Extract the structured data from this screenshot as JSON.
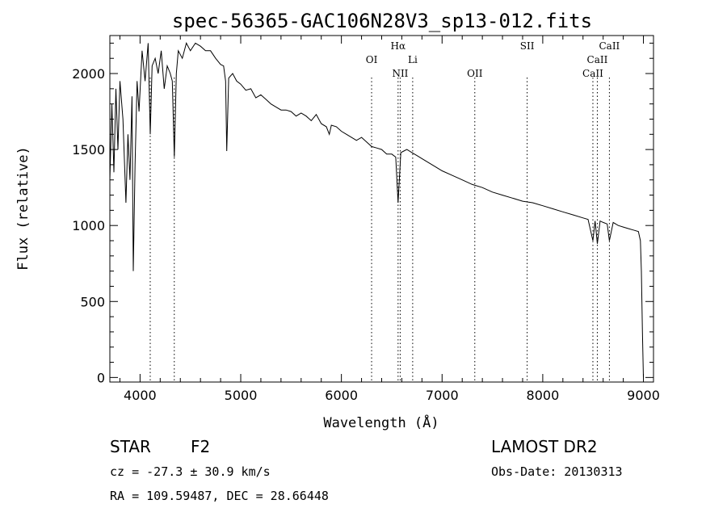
{
  "chart_data": {
    "type": "line",
    "title": "spec-56365-GAC106N28V3_sp13-012.fits",
    "xlabel": "Wavelength (Å)",
    "ylabel": "Flux (relative)",
    "xlim": [
      3700,
      9100
    ],
    "ylim": [
      -30,
      2250
    ],
    "xticks": [
      4000,
      5000,
      6000,
      7000,
      8000,
      9000
    ],
    "yticks": [
      0,
      500,
      1000,
      1500,
      2000
    ],
    "series": [
      {
        "x": [
          3700,
          3720,
          3740,
          3760,
          3780,
          3800,
          3830,
          3860,
          3880,
          3900,
          3920,
          3933,
          3950,
          3970,
          3990,
          4020,
          4050,
          4080,
          4101,
          4120,
          4150,
          4180,
          4210,
          4240,
          4270,
          4300,
          4320,
          4340,
          4360,
          4380,
          4420,
          4460,
          4500,
          4550,
          4600,
          4650,
          4700,
          4750,
          4800,
          4830,
          4850,
          4861,
          4880,
          4920,
          4960,
          5000,
          5050,
          5100,
          5150,
          5200,
          5250,
          5300,
          5350,
          5400,
          5450,
          5500,
          5550,
          5600,
          5650,
          5700,
          5750,
          5800,
          5850,
          5880,
          5900,
          5950,
          6000,
          6050,
          6100,
          6150,
          6200,
          6250,
          6300,
          6350,
          6400,
          6450,
          6500,
          6540,
          6563,
          6590,
          6620,
          6650,
          6700,
          6750,
          6800,
          6850,
          6900,
          6950,
          7000,
          7100,
          7200,
          7300,
          7400,
          7500,
          7600,
          7700,
          7800,
          7900,
          8000,
          8100,
          8200,
          8300,
          8400,
          8450,
          8498,
          8520,
          8542,
          8570,
          8600,
          8640,
          8662,
          8700,
          8750,
          8800,
          8850,
          8900,
          8950,
          8970,
          8980,
          8990,
          9000
        ],
        "y": [
          1300,
          1800,
          1350,
          1900,
          1500,
          1950,
          1700,
          1150,
          1600,
          1300,
          1850,
          700,
          1400,
          1950,
          1750,
          2150,
          1950,
          2200,
          1600,
          2050,
          2100,
          2000,
          2150,
          1900,
          2050,
          2000,
          1950,
          1450,
          2000,
          2150,
          2100,
          2200,
          2150,
          2200,
          2180,
          2150,
          2150,
          2100,
          2060,
          2050,
          1950,
          1490,
          1970,
          2000,
          1950,
          1930,
          1890,
          1900,
          1840,
          1860,
          1830,
          1800,
          1780,
          1760,
          1760,
          1750,
          1720,
          1740,
          1720,
          1690,
          1730,
          1670,
          1650,
          1600,
          1660,
          1650,
          1620,
          1600,
          1580,
          1560,
          1580,
          1550,
          1520,
          1510,
          1500,
          1470,
          1470,
          1450,
          1150,
          1480,
          1490,
          1500,
          1480,
          1460,
          1440,
          1420,
          1400,
          1380,
          1360,
          1330,
          1300,
          1270,
          1250,
          1220,
          1200,
          1180,
          1160,
          1150,
          1130,
          1110,
          1090,
          1070,
          1050,
          1040,
          900,
          1030,
          880,
          1030,
          1020,
          1010,
          900,
          1020,
          1000,
          990,
          980,
          970,
          960,
          900,
          700,
          300,
          0
        ]
      }
    ],
    "lines": [
      {
        "label": "OI",
        "x": 6300,
        "row": 2
      },
      {
        "label": "Hα",
        "x": 6563,
        "row": 1
      },
      {
        "label": "NII",
        "x": 6584,
        "row": 3
      },
      {
        "label": "Li",
        "x": 6708,
        "row": 2
      },
      {
        "label": "OII",
        "x": 7325,
        "row": 3
      },
      {
        "label": "SII",
        "x": 7845,
        "row": 1
      },
      {
        "label": "CaII",
        "x": 8498,
        "row": 3
      },
      {
        "label": "CaII",
        "x": 8542,
        "row": 2
      },
      {
        "label": "CaII",
        "x": 8662,
        "row": 1
      }
    ],
    "line_markers_x": [
      4101,
      4340,
      6300,
      6563,
      6584,
      6708,
      7325,
      7845,
      8498,
      8542,
      8662
    ],
    "grid": false,
    "legend": "none"
  },
  "info": {
    "object_class": "STAR",
    "subclass": "F2",
    "survey": "LAMOST DR2",
    "redshift": "cz = -27.3 ± 30.9 km/s",
    "obs_date": "Obs-Date: 20130313",
    "coords": "RA = 109.59487, DEC =  28.66448"
  },
  "colors": {
    "spectrum": "#000000",
    "markers": "#000000",
    "background": "#ffffff"
  }
}
